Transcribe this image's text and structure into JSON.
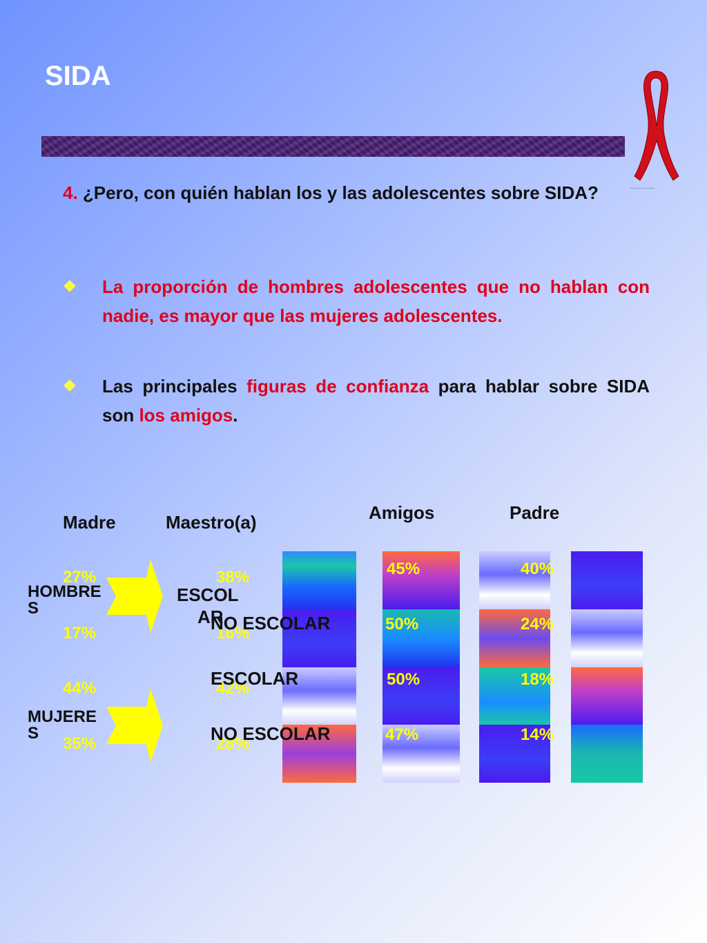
{
  "title": "SIDA",
  "question": {
    "number": "4.",
    "text": "¿Pero, con quién hablan los y las adolescentes sobre SIDA?"
  },
  "bullets": [
    {
      "mark": "❖",
      "text": "La proporción de hombres adolescentes que no hablan con nadie, es mayor que las mujeres adolescentes."
    },
    {
      "mark": "❖",
      "part1": "Las principales ",
      "part2": "figuras de confianza",
      "part3": " para hablar sobre SIDA son ",
      "part4": "los amigos",
      "part5": "."
    }
  ],
  "chart": {
    "headers": {
      "madre": "Madre",
      "maestro": "Maestro(a)",
      "amigos": "Amigos",
      "padre": "Padre"
    },
    "groups": {
      "hombres": "HOMBRE S",
      "hombres_line1": "HOMBRE",
      "hombres_line2": "S",
      "mujeres_line1": "MUJERE",
      "mujeres_line2": "S"
    },
    "row_labels": {
      "escolar_h_line1": "ESCOL",
      "escolar_h_line2": "AR",
      "no_escolar_h": "NO ESCOLAR",
      "escolar_m": "ESCOLAR",
      "no_escolar_m": "NO ESCOLAR"
    },
    "madre": [
      "27%",
      "17%",
      "44%",
      "35%"
    ],
    "maestro": [
      "38%",
      "16%",
      "42%",
      "28%"
    ],
    "amigos": [
      "45%",
      "50%",
      "50%",
      "47%"
    ],
    "padre": [
      "40%",
      "24%",
      "18%",
      "14%"
    ]
  },
  "colors": {
    "accent_red": "#e0001c",
    "percent_yellow": "#ffff00",
    "band_purple": "#4a2777"
  }
}
